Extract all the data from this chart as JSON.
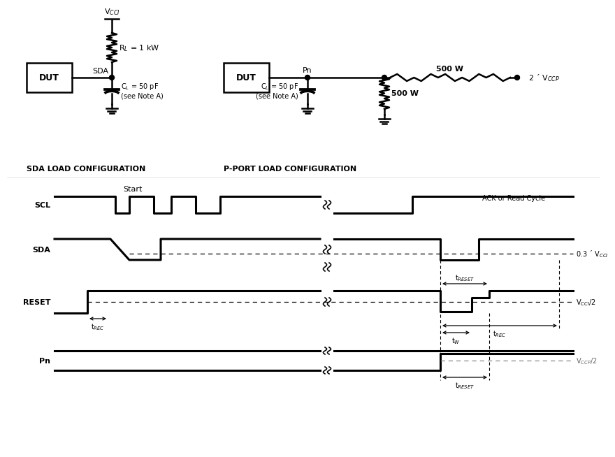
{
  "bg_color": "#ffffff",
  "circuit": {
    "sda_config_label": "SDA LOAD CONFIGURATION",
    "pport_config_label": "P-PORT LOAD CONFIGURATION",
    "dut_label": "DUT",
    "sda_label": "SDA",
    "rl_label": "R$_L$ = 1 kW",
    "vcci_label": "V$_{CCI}$",
    "cl_label": "C$_L$ = 50 pF\n(see Note A)",
    "pn_label": "Pn",
    "r500_top_label": "500 W",
    "r500_bot_label": "500 W",
    "vccp_label": "2 ´ V$_{CCP}$",
    "cl2_label": "C$_L$ = 50 pF\n(see Note A)"
  },
  "waveforms": {
    "scl_label": "SCL",
    "sda_label": "SDA",
    "reset_label": "RESET",
    "pn_label": "Pn",
    "start_label": "Start",
    "ack_label": "ACK or Read Cycle",
    "treset_label": "t$_{RESET}$",
    "trec_label": "t$_{REC}$",
    "tw_label": "t$_W$",
    "vcci2_label": "V$_{CCI}$/2",
    "vccp2_label": "V$_{CCP}$/2",
    "v03_label": "0.3 ´ V$_{CCI}$",
    "treset2_label": "t$_{RESET}$"
  }
}
